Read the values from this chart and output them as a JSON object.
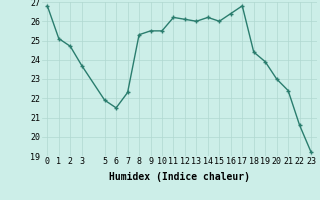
{
  "x": [
    0,
    1,
    2,
    3,
    5,
    6,
    7,
    8,
    9,
    10,
    11,
    12,
    13,
    14,
    15,
    16,
    17,
    18,
    19,
    20,
    21,
    22,
    23
  ],
  "y": [
    26.8,
    25.1,
    24.7,
    23.7,
    21.9,
    21.5,
    22.3,
    25.3,
    25.5,
    25.5,
    26.2,
    26.1,
    26.0,
    26.2,
    26.0,
    26.4,
    26.8,
    24.4,
    23.9,
    23.0,
    22.4,
    20.6,
    19.2
  ],
  "line_color": "#2a7d6e",
  "marker": "+",
  "marker_size": 3,
  "marker_lw": 1.0,
  "line_width": 1.0,
  "bg_color": "#cceee8",
  "grid_color": "#b0d8d0",
  "xlabel": "Humidex (Indice chaleur)",
  "ylim": [
    19,
    27
  ],
  "xlim": [
    -0.5,
    23.5
  ],
  "xticks": [
    0,
    1,
    2,
    3,
    5,
    6,
    7,
    8,
    9,
    10,
    11,
    12,
    13,
    14,
    15,
    16,
    17,
    18,
    19,
    20,
    21,
    22,
    23
  ],
  "yticks": [
    19,
    20,
    21,
    22,
    23,
    24,
    25,
    26,
    27
  ],
  "label_fontsize": 7,
  "tick_fontsize": 6
}
